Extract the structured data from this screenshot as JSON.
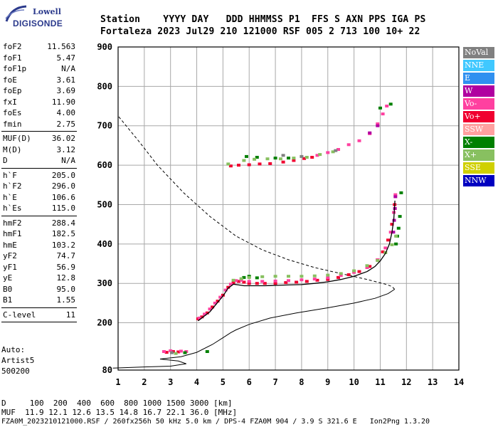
{
  "logo": {
    "line1": "Lowell",
    "line2": "DIGISONDE"
  },
  "header": {
    "labels": "Station    YYYY DAY   DDD HHMMSS P1  FFS S AXN PPS IGA PS",
    "values": "Fortaleza 2023 Jul29 210 121000 RSF 005 2 713 100 10+ 22"
  },
  "params_group1": [
    {
      "name": "foF2",
      "value": "11.563"
    },
    {
      "name": "foF1",
      "value": "5.47"
    },
    {
      "name": "foF1p",
      "value": "N/A"
    },
    {
      "name": "foE",
      "value": "3.61"
    },
    {
      "name": "foEp",
      "value": "3.69"
    },
    {
      "name": "fxI",
      "value": "11.90"
    },
    {
      "name": "foEs",
      "value": "4.00"
    },
    {
      "name": "fmin",
      "value": "2.75"
    }
  ],
  "params_group2": [
    {
      "name": "MUF(D)",
      "value": "36.02"
    },
    {
      "name": "M(D)",
      "value": "3.12"
    },
    {
      "name": "D",
      "value": "N/A"
    }
  ],
  "params_group3": [
    {
      "name": "h`F",
      "value": "205.0"
    },
    {
      "name": "h`F2",
      "value": "296.0"
    },
    {
      "name": "h`E",
      "value": "106.6"
    },
    {
      "name": "h`Es",
      "value": "115.0"
    }
  ],
  "params_group4": [
    {
      "name": "hmF2",
      "value": "288.4"
    },
    {
      "name": "hmF1",
      "value": "182.5"
    },
    {
      "name": "hmE",
      "value": "103.2"
    },
    {
      "name": "yF2",
      "value": "74.7"
    },
    {
      "name": "yF1",
      "value": "56.9"
    },
    {
      "name": "yE",
      "value": "12.8"
    },
    {
      "name": "B0",
      "value": "95.0"
    },
    {
      "name": "B1",
      "value": "1.55"
    }
  ],
  "params_group5": [
    {
      "name": "C-level",
      "value": "11"
    }
  ],
  "auto": {
    "line1": "Auto:",
    "line2": "Artist5",
    "line3": "500200"
  },
  "legend": [
    {
      "label": "NoVal",
      "color": "#808080"
    },
    {
      "label": "NNE",
      "color": "#40c8ff"
    },
    {
      "label": "E",
      "color": "#3090f0"
    },
    {
      "label": "W",
      "color": "#b000a0"
    },
    {
      "label": "Vo-",
      "color": "#ff40a0"
    },
    {
      "label": "Vo+",
      "color": "#f00030"
    },
    {
      "label": "SSW",
      "color": "#ffa0a0"
    },
    {
      "label": "X-",
      "color": "#008000"
    },
    {
      "label": "X+",
      "color": "#88c060"
    },
    {
      "label": "SSE",
      "color": "#d0d000"
    },
    {
      "label": "NNW",
      "color": "#0000c0"
    }
  ],
  "footer": {
    "line1": "D     100  200  400  600  800 1000 1500 3000 [km]",
    "line2": "MUF  11.9 12.1 12.6 13.5 14.8 16.7 22.1 36.0 [MHz]",
    "line3": "FZA0M_2023210121000.RSF / 260fx256h 50 kHz 5.0 km / DPS-4 FZA0M 904 / 3.9 S 321.6 E   Ion2Png 1.3.20"
  },
  "chart_data": {
    "type": "scatter",
    "xlim": [
      1,
      14
    ],
    "ylim": [
      80,
      900
    ],
    "x_ticks": [
      1,
      2,
      3,
      4,
      5,
      6,
      7,
      8,
      9,
      10,
      11,
      12,
      13,
      14
    ],
    "y_ticks": [
      80,
      200,
      300,
      400,
      500,
      600,
      700,
      800,
      900
    ],
    "grid": true,
    "series": [
      {
        "name": "Vo+",
        "color": "#f00030",
        "points": [
          [
            4.05,
            210
          ],
          [
            4.2,
            215
          ],
          [
            4.4,
            225
          ],
          [
            4.6,
            240
          ],
          [
            4.8,
            255
          ],
          [
            5.0,
            270
          ],
          [
            5.2,
            290
          ],
          [
            5.4,
            302
          ],
          [
            5.6,
            305
          ],
          [
            5.8,
            303
          ],
          [
            6.0,
            300
          ],
          [
            6.3,
            300
          ],
          [
            6.6,
            300
          ],
          [
            7.0,
            300
          ],
          [
            7.4,
            302
          ],
          [
            7.8,
            303
          ],
          [
            8.2,
            305
          ],
          [
            8.6,
            308
          ],
          [
            9.0,
            310
          ],
          [
            9.4,
            315
          ],
          [
            9.8,
            322
          ],
          [
            10.2,
            330
          ],
          [
            10.6,
            343
          ],
          [
            10.9,
            360
          ],
          [
            11.1,
            380
          ],
          [
            11.3,
            410
          ],
          [
            11.45,
            450
          ],
          [
            11.55,
            500
          ],
          [
            5.3,
            598
          ],
          [
            5.6,
            600
          ],
          [
            6.0,
            601
          ],
          [
            6.4,
            603
          ],
          [
            6.8,
            604
          ],
          [
            7.3,
            608
          ],
          [
            7.7,
            612
          ],
          [
            8.1,
            617
          ],
          [
            8.4,
            620
          ],
          [
            2.85,
            125
          ],
          [
            3.1,
            127
          ],
          [
            3.3,
            126
          ]
        ]
      },
      {
        "name": "Vo-",
        "color": "#ff40a0",
        "points": [
          [
            4.1,
            212
          ],
          [
            4.3,
            222
          ],
          [
            4.5,
            235
          ],
          [
            4.7,
            250
          ],
          [
            4.9,
            265
          ],
          [
            5.1,
            283
          ],
          [
            5.3,
            298
          ],
          [
            5.5,
            307
          ],
          [
            5.7,
            308
          ],
          [
            6.0,
            305
          ],
          [
            6.5,
            305
          ],
          [
            7.0,
            306
          ],
          [
            7.5,
            307
          ],
          [
            8.0,
            309
          ],
          [
            8.5,
            311
          ],
          [
            9.0,
            314
          ],
          [
            9.5,
            320
          ],
          [
            10.0,
            328
          ],
          [
            10.5,
            340
          ],
          [
            10.9,
            360
          ],
          [
            11.2,
            390
          ],
          [
            11.4,
            430
          ],
          [
            11.52,
            480
          ],
          [
            11.58,
            525
          ],
          [
            8.6,
            625
          ],
          [
            9.0,
            632
          ],
          [
            9.4,
            640
          ],
          [
            9.8,
            652
          ],
          [
            10.2,
            662
          ],
          [
            10.6,
            680
          ],
          [
            10.9,
            705
          ],
          [
            11.1,
            730
          ],
          [
            11.25,
            750
          ],
          [
            2.75,
            127
          ],
          [
            3.0,
            129
          ],
          [
            3.4,
            128
          ],
          [
            3.6,
            127
          ]
        ]
      },
      {
        "name": "X-",
        "color": "#008000",
        "points": [
          [
            5.8,
            315
          ],
          [
            6.0,
            318
          ],
          [
            6.3,
            314
          ],
          [
            11.6,
            400
          ],
          [
            11.65,
            420
          ],
          [
            11.7,
            440
          ],
          [
            11.75,
            470
          ],
          [
            11.8,
            530
          ],
          [
            5.9,
            622
          ],
          [
            6.3,
            620
          ],
          [
            7.0,
            618
          ],
          [
            7.5,
            618
          ],
          [
            4.4,
            127
          ],
          [
            3.55,
            124
          ],
          [
            11.4,
            755
          ],
          [
            11.0,
            745
          ]
        ]
      },
      {
        "name": "X+",
        "color": "#88c060",
        "points": [
          [
            5.4,
            308
          ],
          [
            5.7,
            312
          ],
          [
            6.0,
            315
          ],
          [
            6.5,
            317
          ],
          [
            7.0,
            318
          ],
          [
            7.5,
            318
          ],
          [
            8.0,
            318
          ],
          [
            8.5,
            319
          ],
          [
            9.0,
            321
          ],
          [
            9.5,
            325
          ],
          [
            10.0,
            332
          ],
          [
            10.5,
            345
          ],
          [
            10.9,
            358
          ],
          [
            11.2,
            378
          ],
          [
            11.45,
            398
          ],
          [
            11.6,
            420
          ],
          [
            5.8,
            612
          ],
          [
            6.2,
            615
          ],
          [
            6.7,
            616
          ],
          [
            7.2,
            616
          ],
          [
            7.7,
            618
          ],
          [
            8.2,
            620
          ],
          [
            8.7,
            627
          ],
          [
            9.2,
            634
          ],
          [
            5.2,
            603
          ],
          [
            3.2,
            122
          ]
        ]
      },
      {
        "name": "W",
        "color": "#b000a0",
        "points": [
          [
            11.5,
            430
          ],
          [
            11.53,
            460
          ],
          [
            11.56,
            490
          ],
          [
            11.58,
            520
          ],
          [
            10.9,
            700
          ],
          [
            10.6,
            682
          ]
        ]
      },
      {
        "name": "NoVal",
        "color": "#808080",
        "points": [
          [
            7.3,
            625
          ],
          [
            8.0,
            622
          ],
          [
            9.3,
            637
          ],
          [
            3.05,
            124
          ]
        ]
      }
    ],
    "trace_curve": [
      [
        4.05,
        205
      ],
      [
        4.5,
        228
      ],
      [
        5.0,
        268
      ],
      [
        5.2,
        288
      ],
      [
        5.4,
        298
      ],
      [
        5.6,
        296
      ],
      [
        5.8,
        294
      ],
      [
        6.2,
        294
      ],
      [
        6.6,
        294
      ],
      [
        7.0,
        295
      ],
      [
        7.5,
        296
      ],
      [
        8.0,
        297
      ],
      [
        8.5,
        300
      ],
      [
        9.0,
        304
      ],
      [
        9.5,
        310
      ],
      [
        10.0,
        318
      ],
      [
        10.5,
        330
      ],
      [
        10.8,
        343
      ],
      [
        11.0,
        357
      ],
      [
        11.2,
        376
      ],
      [
        11.35,
        400
      ],
      [
        11.45,
        430
      ],
      [
        11.52,
        465
      ],
      [
        11.56,
        510
      ]
    ],
    "profile_curve": [
      [
        0.8,
        85
      ],
      [
        2.0,
        88
      ],
      [
        3.0,
        90
      ],
      [
        3.6,
        96
      ],
      [
        3.3,
        103
      ],
      [
        2.6,
        108
      ],
      [
        3.4,
        114
      ],
      [
        4.0,
        125
      ],
      [
        4.6,
        145
      ],
      [
        5.0,
        162
      ],
      [
        5.3,
        175
      ],
      [
        5.5,
        182
      ],
      [
        6.0,
        196
      ],
      [
        6.8,
        212
      ],
      [
        7.8,
        225
      ],
      [
        9.0,
        238
      ],
      [
        10.0,
        250
      ],
      [
        10.8,
        262
      ],
      [
        11.3,
        274
      ],
      [
        11.55,
        285
      ],
      [
        11.45,
        292
      ],
      [
        11.2,
        298
      ],
      [
        10.5,
        310
      ],
      [
        9.5,
        325
      ],
      [
        8.5,
        340
      ],
      [
        7.5,
        360
      ],
      [
        6.5,
        385
      ],
      [
        5.5,
        420
      ],
      [
        4.5,
        470
      ],
      [
        3.5,
        530
      ],
      [
        2.5,
        600
      ],
      [
        1.8,
        660
      ],
      [
        1.0,
        725
      ]
    ]
  }
}
